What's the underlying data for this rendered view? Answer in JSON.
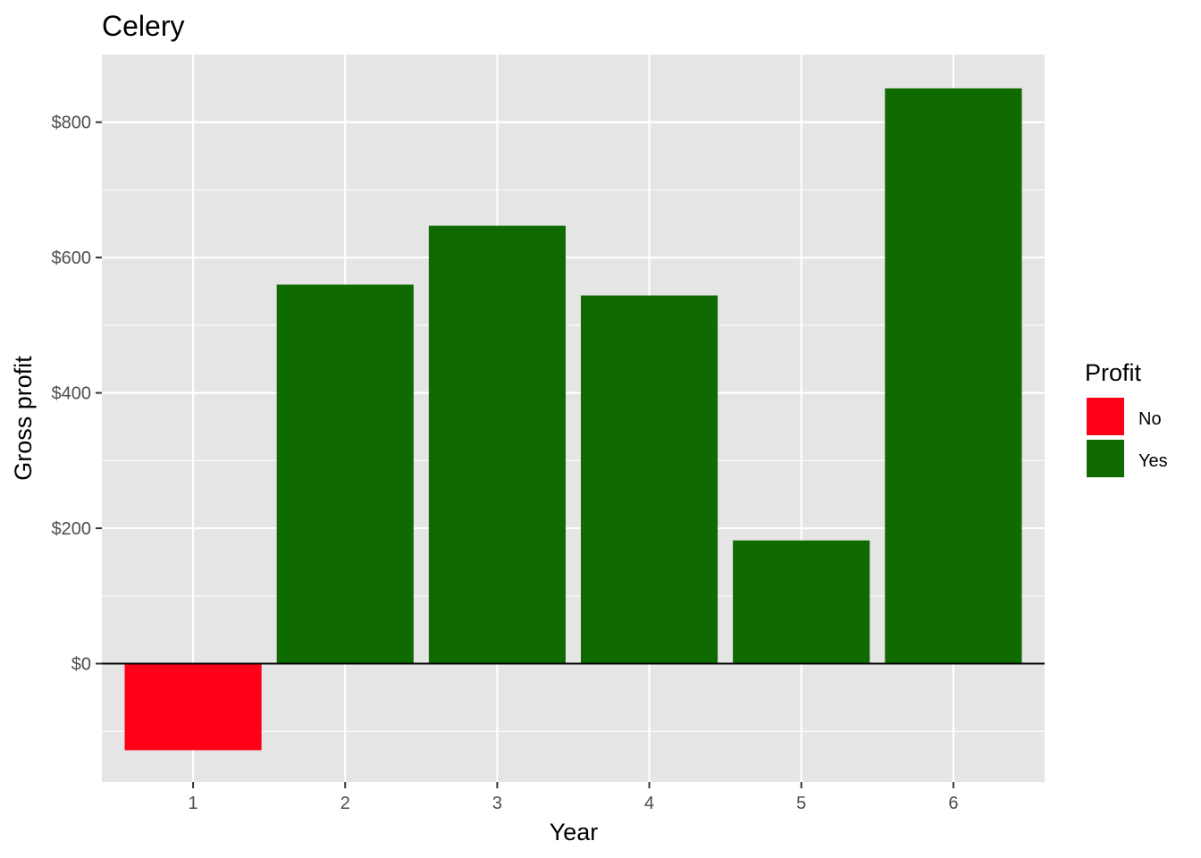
{
  "chart_data": {
    "type": "bar",
    "title": "Celery",
    "xlabel": "Year",
    "ylabel": "Gross profit",
    "categories": [
      "1",
      "2",
      "3",
      "4",
      "5",
      "6"
    ],
    "values": [
      -128,
      560,
      647,
      544,
      182,
      850
    ],
    "profit": [
      "No",
      "Yes",
      "Yes",
      "Yes",
      "Yes",
      "Yes"
    ],
    "y_ticks": [
      0,
      200,
      400,
      600,
      800
    ],
    "y_tick_labels": [
      "$0",
      "$200",
      "$400",
      "$600",
      "$800"
    ],
    "ylim": [
      -175,
      900
    ],
    "grid": true,
    "panel_background": "#e5e5e5",
    "legend": {
      "title": "Profit",
      "position": "right",
      "entries": [
        {
          "label": "No",
          "color": "#ff0019"
        },
        {
          "label": "Yes",
          "color": "#0f6b00"
        }
      ]
    },
    "colors": {
      "No": "#ff0019",
      "Yes": "#0f6b00"
    }
  }
}
